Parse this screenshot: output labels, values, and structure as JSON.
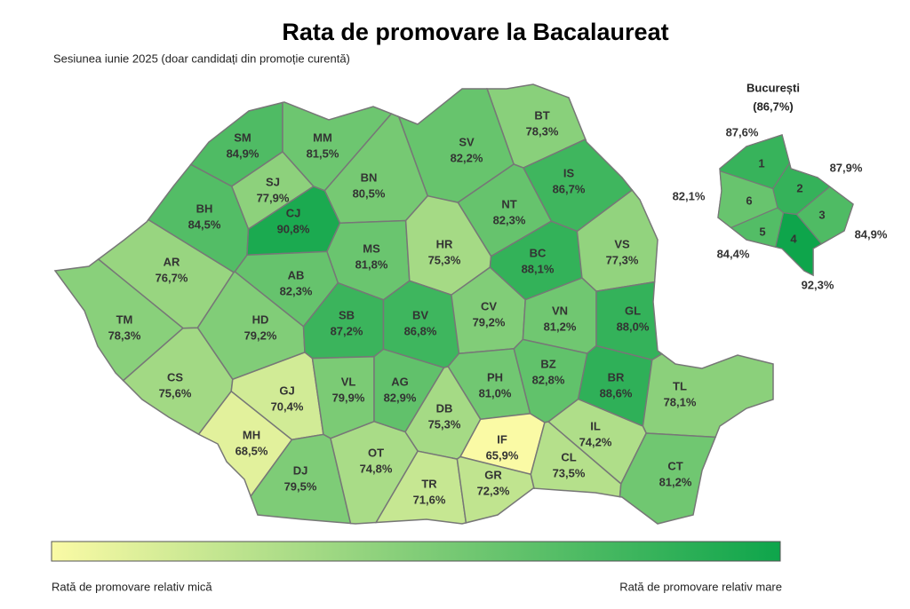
{
  "header": {
    "title": "Rata de promovare la Bacalaureat",
    "subtitle": "Sesiunea iunie 2025 (doar candidați din promoție curentă)"
  },
  "counties": [
    {
      "code": "SM",
      "value": 84.9,
      "label": "84,9%"
    },
    {
      "code": "MM",
      "value": 81.5,
      "label": "81,5%"
    },
    {
      "code": "BT",
      "value": 78.3,
      "label": "78,3%"
    },
    {
      "code": "SV",
      "value": 82.2,
      "label": "82,2%"
    },
    {
      "code": "BN",
      "value": 80.5,
      "label": "80,5%"
    },
    {
      "code": "SJ",
      "value": 77.9,
      "label": "77,9%"
    },
    {
      "code": "BH",
      "value": 84.5,
      "label": "84,5%"
    },
    {
      "code": "CJ",
      "value": 90.8,
      "label": "90,8%"
    },
    {
      "code": "IS",
      "value": 86.7,
      "label": "86,7%"
    },
    {
      "code": "NT",
      "value": 82.3,
      "label": "82,3%"
    },
    {
      "code": "MS",
      "value": 81.8,
      "label": "81,8%"
    },
    {
      "code": "HR",
      "value": 75.3,
      "label": "75,3%"
    },
    {
      "code": "BC",
      "value": 88.1,
      "label": "88,1%"
    },
    {
      "code": "VS",
      "value": 77.3,
      "label": "77,3%"
    },
    {
      "code": "AR",
      "value": 76.7,
      "label": "76,7%"
    },
    {
      "code": "AB",
      "value": 82.3,
      "label": "82,3%"
    },
    {
      "code": "TM",
      "value": 78.3,
      "label": "78,3%"
    },
    {
      "code": "HD",
      "value": 79.2,
      "label": "79,2%"
    },
    {
      "code": "SB",
      "value": 87.2,
      "label": "87,2%"
    },
    {
      "code": "BV",
      "value": 86.8,
      "label": "86,8%"
    },
    {
      "code": "CV",
      "value": 79.2,
      "label": "79,2%"
    },
    {
      "code": "VN",
      "value": 81.2,
      "label": "81,2%"
    },
    {
      "code": "GL",
      "value": 88.0,
      "label": "88,0%"
    },
    {
      "code": "CS",
      "value": 75.6,
      "label": "75,6%"
    },
    {
      "code": "GJ",
      "value": 70.4,
      "label": "70,4%"
    },
    {
      "code": "VL",
      "value": 79.9,
      "label": "79,9%"
    },
    {
      "code": "AG",
      "value": 82.9,
      "label": "82,9%"
    },
    {
      "code": "PH",
      "value": 81.0,
      "label": "81,0%"
    },
    {
      "code": "BZ",
      "value": 82.8,
      "label": "82,8%"
    },
    {
      "code": "BR",
      "value": 88.6,
      "label": "88,6%"
    },
    {
      "code": "TL",
      "value": 78.1,
      "label": "78,1%"
    },
    {
      "code": "MH",
      "value": 68.5,
      "label": "68,5%"
    },
    {
      "code": "DB",
      "value": 75.3,
      "label": "75,3%"
    },
    {
      "code": "IF",
      "value": 65.9,
      "label": "65,9%"
    },
    {
      "code": "IL",
      "value": 74.2,
      "label": "74,2%"
    },
    {
      "code": "DJ",
      "value": 79.5,
      "label": "79,5%"
    },
    {
      "code": "OT",
      "value": 74.8,
      "label": "74,8%"
    },
    {
      "code": "TR",
      "value": 71.6,
      "label": "71,6%"
    },
    {
      "code": "GR",
      "value": 72.3,
      "label": "72,3%"
    },
    {
      "code": "CL",
      "value": 73.5,
      "label": "73,5%"
    },
    {
      "code": "CT",
      "value": 81.2,
      "label": "81,2%"
    }
  ],
  "bucharest": {
    "title": "București",
    "total": {
      "value": 86.7,
      "label": "(86,7%)"
    },
    "sectors": [
      {
        "number": 1,
        "value": 87.6,
        "label": "87,6%"
      },
      {
        "number": 2,
        "value": 87.9,
        "label": "87,9%"
      },
      {
        "number": 3,
        "value": 84.9,
        "label": "84,9%"
      },
      {
        "number": 4,
        "value": 92.3,
        "label": "92,3%"
      },
      {
        "number": 5,
        "value": 84.4,
        "label": "84,4%"
      },
      {
        "number": 6,
        "value": 82.1,
        "label": "82,1%"
      }
    ]
  },
  "legend": {
    "low": "Rată de promovare relativ mică",
    "high": "Rată de promovare relativ mare"
  }
}
